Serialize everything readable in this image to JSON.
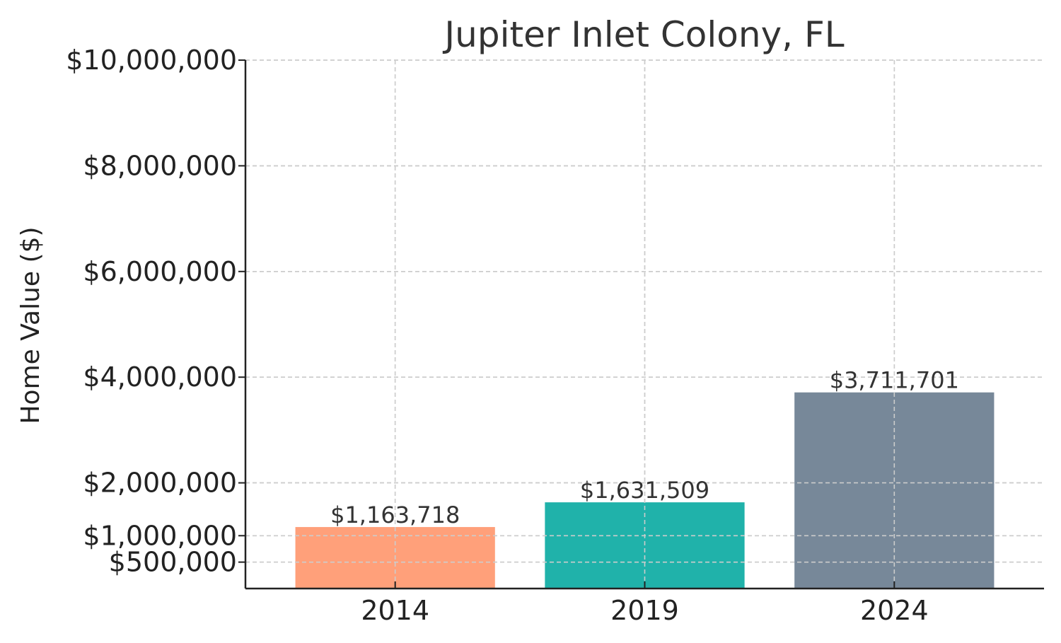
{
  "chart_data": {
    "type": "bar",
    "title": "Jupiter Inlet Colony, FL",
    "xlabel": "",
    "ylabel": "Home Value ($)",
    "categories": [
      "2014",
      "2019",
      "2024"
    ],
    "values": [
      1163718,
      1631509,
      3711701
    ],
    "data_labels": [
      "$1,163,718",
      "$1,631,509",
      "$3,711,701"
    ],
    "colors": [
      "#FFA07A",
      "#20B2AA",
      "#778899"
    ],
    "ylim": [
      0,
      10000000
    ],
    "yticks": [
      500000,
      1000000,
      2000000,
      4000000,
      6000000,
      8000000,
      10000000
    ],
    "ytick_labels": [
      "$500,000",
      "$1,000,000",
      "$2,000,000",
      "$4,000,000",
      "$6,000,000",
      "$8,000,000",
      "$10,000,000"
    ],
    "grid": true,
    "legend": "none"
  }
}
